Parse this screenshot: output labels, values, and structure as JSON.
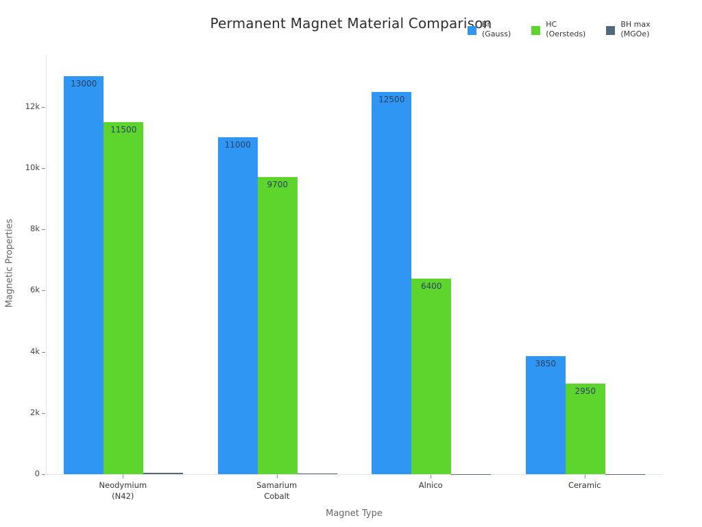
{
  "chart_data": {
    "type": "bar",
    "title": "Permanent Magnet Material Comparison",
    "xlabel": "Magnet Type",
    "ylabel": "Magnetic Properties",
    "categories": [
      "Neodymium\n(N42)",
      "Samarium\nCobalt",
      "Alnico",
      "Ceramic"
    ],
    "series": [
      {
        "name": "Br\n(Gauss)",
        "color": "#3096f3",
        "values": [
          13000,
          11000,
          12500,
          3850
        ],
        "labels": [
          "13000",
          "11000",
          "12500",
          "3850"
        ],
        "show_labels": true
      },
      {
        "name": "HC\n(Oersteds)",
        "color": "#5dd52d",
        "values": [
          11500,
          9700,
          6400,
          2950
        ],
        "labels": [
          "11500",
          "9700",
          "6400",
          "2950"
        ],
        "show_labels": true
      },
      {
        "name": "BH max\n(MGOe)",
        "color": "#53697b",
        "values": [
          42,
          30,
          5.5,
          3.5
        ],
        "labels": [],
        "show_labels": false
      }
    ],
    "yticks": {
      "labels": [
        "0",
        "2k",
        "4k",
        "6k",
        "8k",
        "10k",
        "12k"
      ],
      "values": [
        0,
        2000,
        4000,
        6000,
        8000,
        10000,
        12000
      ]
    },
    "ylim": [
      0,
      13700
    ],
    "grid": false,
    "legend_position": "top-right",
    "plot_background": "#ffffff",
    "data_label_color": "#2a3f5f",
    "axis_line_color": "#e3e3e3"
  }
}
